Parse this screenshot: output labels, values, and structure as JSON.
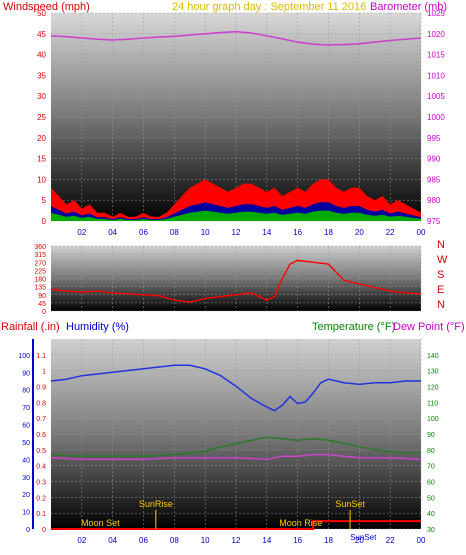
{
  "panel_top": {
    "left_label": "Windspeed (mph)",
    "title": "24 hour graph day : September 11 2016",
    "right_label": "Barometer (mb)"
  },
  "panel_mid": {
    "right_labels": [
      "N",
      "W",
      "S",
      "E",
      "N"
    ]
  },
  "panel_bottom": {
    "rain_label": "Rainfall (.in)",
    "hum_label": "Humidity (%)",
    "temp_label": "Temperature (°F)",
    "dew_label": "Dew Point (°F)",
    "events": [
      "Moon Set",
      "SunRise",
      "Moon Rise",
      "SunSet",
      "SunSet"
    ]
  },
  "colors": {
    "wind": "#ff0000",
    "gust_blue": "#0000a0",
    "gust_green": "#00aa00",
    "barometer": "#cc44cc",
    "direction": "#ff0000",
    "humidity": "#2233dd",
    "temperature": "#2a7a2a",
    "dewpoint": "#cc44cc",
    "rain": "#ff0000",
    "event_marker": "#ffcc00"
  },
  "chart_data": [
    {
      "type": "area",
      "title": "24 hour graph day : September 11 2016",
      "ylabel": "Windspeed (mph)",
      "y2label": "Barometer (mb)",
      "ylim": [
        0,
        50
      ],
      "y_ticks": [
        "0",
        "5",
        "10",
        "15",
        "20",
        "25",
        "30",
        "35",
        "40",
        "45",
        "50"
      ],
      "y2lim": [
        975,
        1025
      ],
      "y2_ticks": [
        "975",
        "980",
        "985",
        "990",
        "995",
        "1000",
        "1005",
        "1010",
        "1015",
        "1020",
        "1025"
      ],
      "xlim": [
        0,
        24
      ],
      "x_ticks": [
        "02",
        "04",
        "06",
        "08",
        "10",
        "12",
        "14",
        "16",
        "18",
        "20",
        "22",
        "00"
      ],
      "grid": true,
      "series": [
        {
          "name": "Windspeed",
          "x": [
            0,
            0.5,
            1,
            1.5,
            2,
            2.5,
            3,
            3.5,
            4,
            4.5,
            5,
            5.5,
            6,
            6.5,
            7,
            7.5,
            8,
            8.5,
            9,
            9.5,
            10,
            10.5,
            11,
            11.5,
            12,
            12.5,
            13,
            13.5,
            14,
            14.5,
            15,
            15.5,
            16,
            16.5,
            17,
            17.5,
            18,
            18.5,
            19,
            19.5,
            20,
            20.5,
            21,
            21.5,
            22,
            22.5,
            23,
            23.5,
            24
          ],
          "y": [
            8,
            6,
            4,
            5,
            3,
            4,
            2,
            2,
            1,
            2,
            1,
            1,
            2,
            1,
            1,
            2,
            4,
            6,
            8,
            9,
            10,
            9,
            8,
            7,
            8,
            9,
            9,
            8,
            7,
            8,
            6,
            7,
            8,
            7,
            9,
            10,
            10,
            8,
            7,
            8,
            8,
            6,
            5,
            6,
            4,
            5,
            4,
            3,
            2
          ]
        },
        {
          "name": "Barometer",
          "x": [
            0,
            1,
            2,
            3,
            4,
            5,
            6,
            7,
            8,
            9,
            10,
            11,
            12,
            13,
            14,
            15,
            16,
            17,
            18,
            19,
            20,
            21,
            22,
            23,
            24
          ],
          "y": [
            1019.5,
            1019.3,
            1019,
            1018.7,
            1018.5,
            1018.7,
            1019,
            1019.2,
            1019.4,
            1019.7,
            1020,
            1020.3,
            1020.5,
            1020.2,
            1019.5,
            1018.8,
            1018,
            1017.5,
            1017.3,
            1017.4,
            1017.6,
            1018,
            1018.4,
            1018.7,
            1019
          ]
        }
      ]
    },
    {
      "type": "line",
      "ylim": [
        0,
        360
      ],
      "y_ticks": [
        "0",
        "45",
        "90",
        "135",
        "180",
        "225",
        "270",
        "315",
        "360"
      ],
      "xlim": [
        0,
        24
      ],
      "series": [
        {
          "name": "Wind Direction",
          "x": [
            0,
            1,
            2,
            3,
            4,
            5,
            6,
            7,
            8,
            9,
            10,
            11,
            12,
            13,
            14,
            14.5,
            15,
            15.5,
            16,
            17,
            18,
            19,
            20,
            21,
            22,
            23,
            24
          ],
          "y": [
            120,
            110,
            105,
            110,
            100,
            95,
            90,
            85,
            60,
            50,
            70,
            80,
            90,
            100,
            60,
            80,
            180,
            260,
            280,
            270,
            260,
            170,
            150,
            130,
            110,
            100,
            95
          ]
        }
      ]
    },
    {
      "type": "line",
      "ylabel": "Rainfall (.in)",
      "ylim": [
        0,
        1.2
      ],
      "y_ticks": [
        "0",
        "0.1",
        "0.2",
        "0.3",
        "0.4",
        "0.5",
        "0.6",
        "0.7",
        "0.8",
        "0.9",
        "1",
        "1.1"
      ],
      "y_hum_ticks": [
        "0",
        "10",
        "20",
        "30",
        "40",
        "50",
        "60",
        "70",
        "80",
        "90",
        "100"
      ],
      "y2label": "Temperature (°F)",
      "y2lim": [
        30,
        150
      ],
      "y2_ticks": [
        "30",
        "40",
        "50",
        "60",
        "70",
        "80",
        "90",
        "100",
        "110",
        "120",
        "130",
        "140"
      ],
      "xlim": [
        0,
        24
      ],
      "x_ticks": [
        "02",
        "04",
        "06",
        "08",
        "10",
        "12",
        "14",
        "16",
        "18",
        "20",
        "22",
        "00"
      ],
      "series": [
        {
          "name": "Humidity",
          "x": [
            0,
            1,
            2,
            3,
            4,
            5,
            6,
            7,
            8,
            9,
            10,
            11,
            12,
            13,
            14,
            14.5,
            15,
            15.5,
            16,
            16.5,
            17,
            17.5,
            18,
            19,
            20,
            21,
            22,
            23,
            24
          ],
          "y": [
            85,
            86,
            88,
            89,
            90,
            91,
            92,
            93,
            94,
            94,
            92,
            88,
            82,
            75,
            70,
            68,
            71,
            76,
            72,
            73,
            78,
            84,
            86,
            84,
            83,
            84,
            84,
            85,
            85
          ]
        },
        {
          "name": "Temperature",
          "x": [
            0,
            2,
            4,
            6,
            8,
            10,
            11,
            12,
            13,
            14,
            15,
            16,
            17,
            18,
            19,
            20,
            21,
            22,
            23,
            24
          ],
          "y": [
            77,
            76,
            76,
            76,
            77,
            79,
            82,
            84,
            86,
            88,
            87,
            86,
            87,
            86,
            84,
            82,
            80,
            79,
            78,
            78
          ]
        },
        {
          "name": "Dew Point",
          "x": [
            0,
            2,
            4,
            6,
            8,
            10,
            12,
            14,
            15,
            16,
            17,
            18,
            19,
            20,
            22,
            24
          ],
          "y": [
            75,
            74,
            74,
            74,
            75,
            75,
            75,
            74,
            76,
            76,
            77,
            77,
            76,
            75,
            75,
            74
          ]
        },
        {
          "name": "Rainfall",
          "x": [
            0,
            17,
            17,
            24
          ],
          "y": [
            0,
            0,
            0.05,
            0.05
          ]
        }
      ],
      "events": [
        {
          "label": "Moon Set",
          "x": 3.2
        },
        {
          "label": "SunRise",
          "x": 6.8
        },
        {
          "label": "Moon Rise",
          "x": 16.2
        },
        {
          "label": "SunSet",
          "x": 19.4
        },
        {
          "label": "SunSet",
          "x": 19.4
        }
      ]
    }
  ]
}
